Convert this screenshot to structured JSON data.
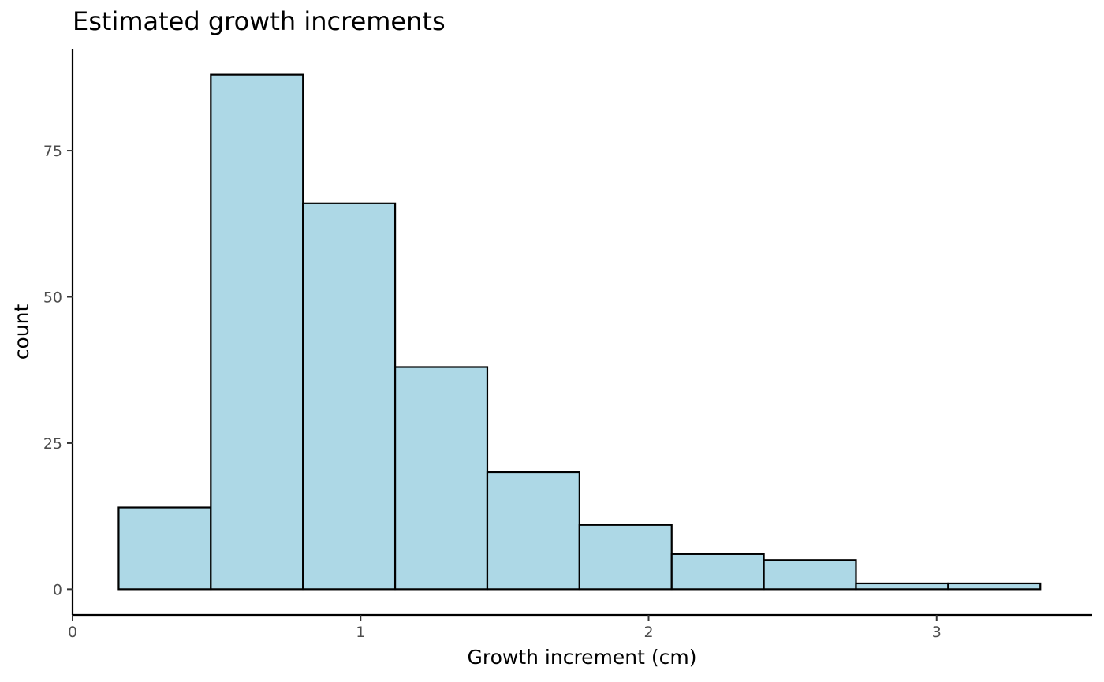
{
  "chart_data": {
    "type": "bar",
    "title": "Estimated growth increments",
    "xlabel": "Growth increment (cm)",
    "ylabel": "count",
    "bin_edges": [
      0.16,
      0.48,
      0.8,
      1.12,
      1.44,
      1.76,
      2.08,
      2.4,
      2.72,
      3.04,
      3.36
    ],
    "counts": [
      14,
      88,
      66,
      38,
      20,
      11,
      6,
      5,
      1,
      1
    ],
    "xlim": [
      0,
      3.54
    ],
    "ylim": [
      -4.4,
      92.4
    ],
    "x_ticks": [
      0,
      1,
      2,
      3
    ],
    "y_ticks": [
      0,
      25,
      50,
      75
    ],
    "x_tick_labels": [
      "0",
      "1",
      "2",
      "3"
    ],
    "y_tick_labels": [
      "0",
      "25",
      "50",
      "75"
    ],
    "bar_fill": "#add8e6",
    "bar_stroke": "#000000",
    "grid": false
  }
}
